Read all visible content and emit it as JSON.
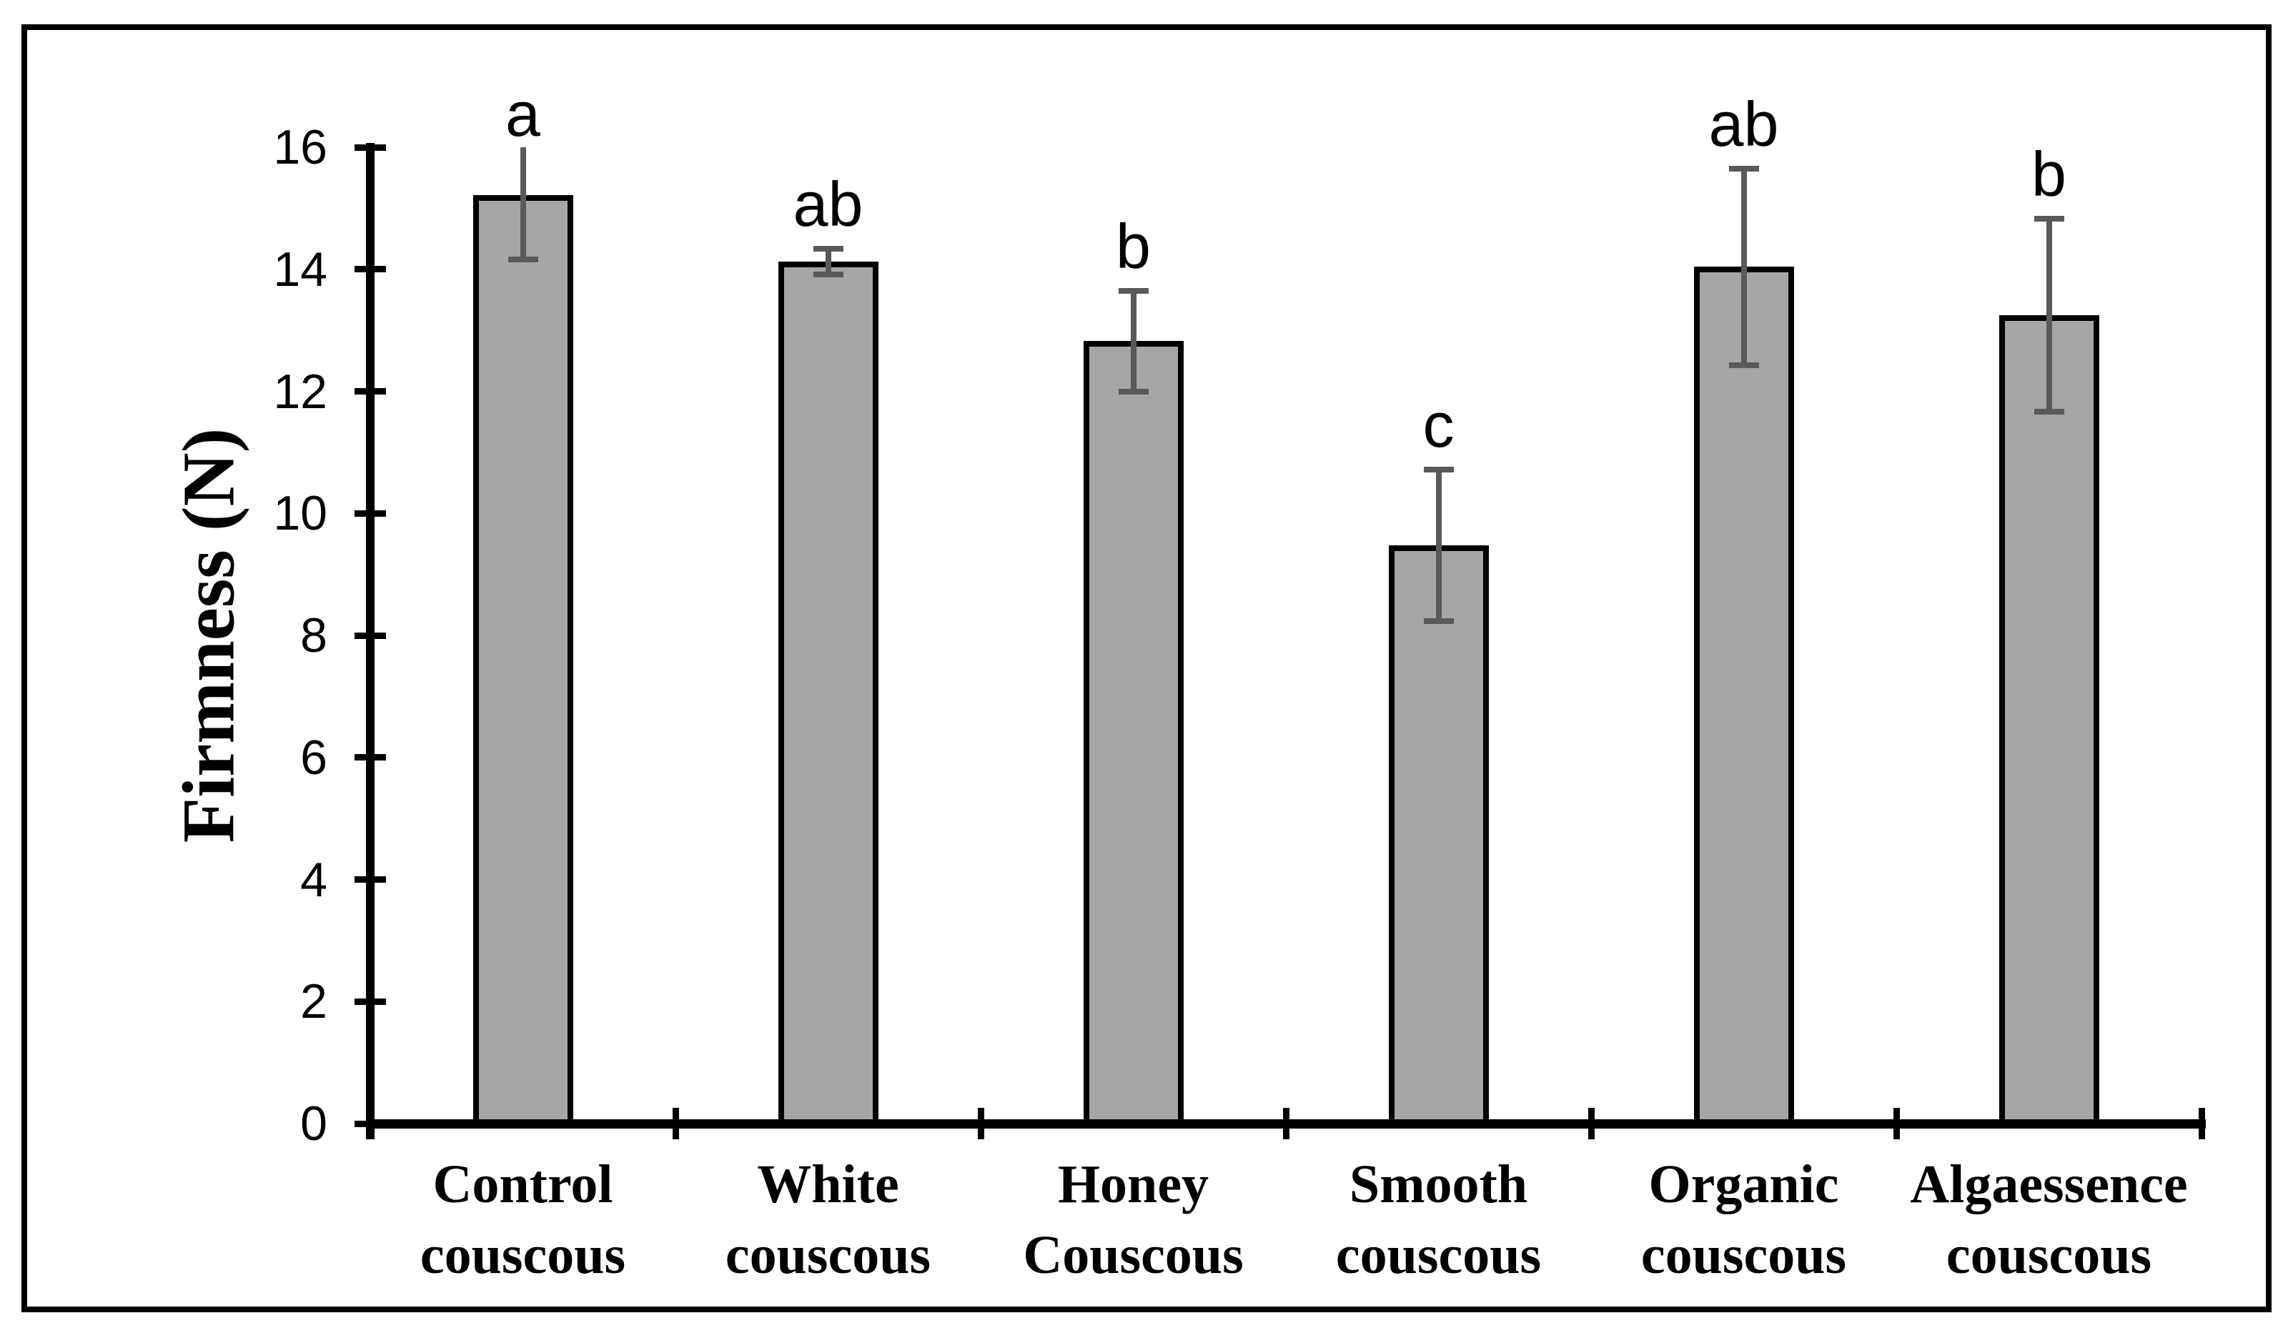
{
  "figure": {
    "background": "#ffffff",
    "border_color": "#000000"
  },
  "chart_data": {
    "type": "bar",
    "title": "",
    "xlabel": "",
    "ylabel": "Firmness (N)",
    "ylim": [
      0,
      16
    ],
    "yticks": [
      0,
      2,
      4,
      6,
      8,
      10,
      12,
      14,
      16
    ],
    "grid": false,
    "legend": false,
    "categories": [
      "Control couscous",
      "White couscous",
      "Honey Couscous",
      "Smooth couscous",
      "Organic couscous",
      "Algaessence couscous"
    ],
    "category_lines": [
      [
        "Control",
        "couscous"
      ],
      [
        "White",
        "couscous"
      ],
      [
        "Honey",
        "Couscous"
      ],
      [
        "Smooth",
        "couscous"
      ],
      [
        "Organic",
        "couscous"
      ],
      [
        "Algaessence",
        "couscous"
      ]
    ],
    "series": [
      {
        "name": "Firmness (N)",
        "values": [
          15.22,
          14.13,
          12.82,
          9.48,
          14.04,
          13.25
        ],
        "error_bars": [
          1.06,
          0.21,
          0.82,
          1.24,
          1.61,
          1.58
        ]
      }
    ],
    "significance_letters": [
      "a",
      "ab",
      "b",
      "c",
      "ab",
      "b"
    ],
    "colors": {
      "bar_fill": "#a6a6a6",
      "bar_border": "#000000",
      "error_bar": "#595959",
      "axis": "#000000",
      "text": "#000000"
    }
  }
}
